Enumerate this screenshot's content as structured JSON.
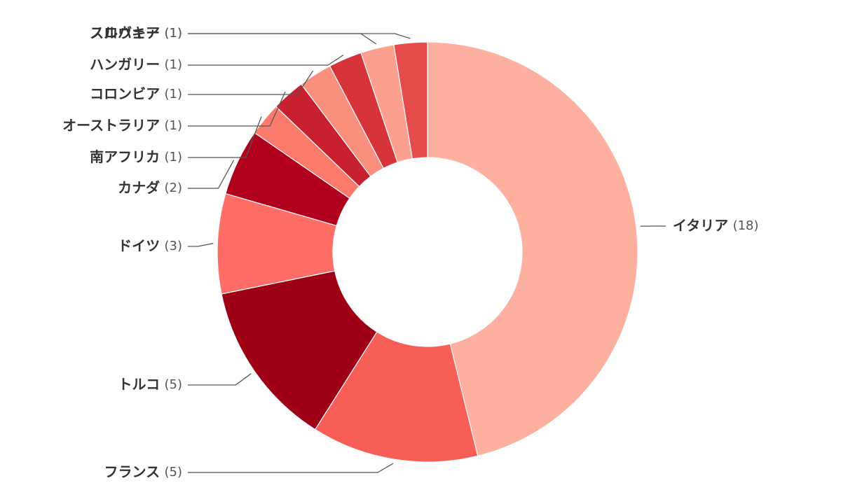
{
  "chart_data": {
    "type": "donut",
    "categories": [
      "イタリア",
      "フランス",
      "トルコ",
      "ドイツ",
      "カナダ",
      "南アフリカ",
      "オーストラリア",
      "コロンビア",
      "ハンガリー",
      "ノルウェー",
      "スロバキア"
    ],
    "values": [
      18,
      5,
      5,
      3,
      2,
      1,
      1,
      1,
      1,
      1,
      1
    ],
    "value_labels": [
      "(18)",
      "(5)",
      "(5)",
      "(3)",
      "(2)",
      "(1)",
      "(1)",
      "(1)",
      "(1)",
      "(1)",
      "(1)"
    ],
    "colors": [
      "#fdb0a0",
      "#f85e58",
      "#9e0016",
      "#fe6e66",
      "#b0001d",
      "#fb7a6c",
      "#c8202e",
      "#fb8f7e",
      "#d63438",
      "#fca090",
      "#e54b4a"
    ]
  }
}
